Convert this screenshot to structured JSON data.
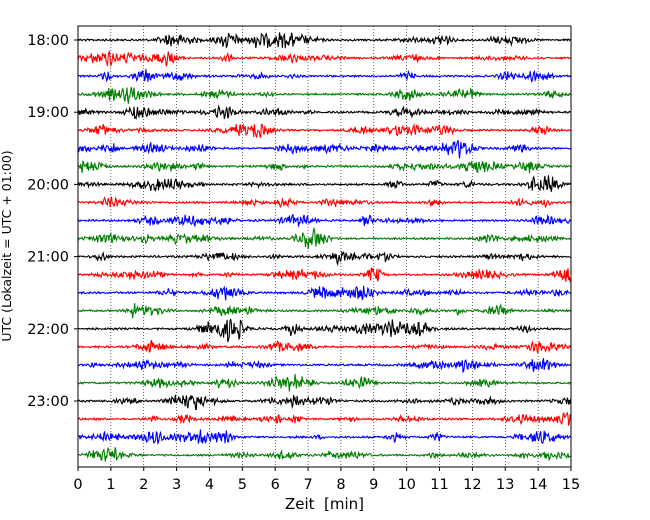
{
  "chart_data": {
    "type": "line",
    "title": "",
    "xlabel": "Zeit  [min]",
    "ylabel": "UTC (Lokalzeit = UTC + 01:00)",
    "xlim": [
      0,
      15
    ],
    "x_ticks": [
      "0",
      "1",
      "2",
      "3",
      "4",
      "5",
      "6",
      "7",
      "8",
      "9",
      "10",
      "11",
      "12",
      "13",
      "14",
      "15"
    ],
    "y_ticks": [
      "18:00",
      "19:00",
      "20:00",
      "21:00",
      "22:00",
      "23:00"
    ],
    "grid": "vertical-dotted",
    "trace_colors": [
      "#000000",
      "#ff0000",
      "#0000ff",
      "#008000"
    ],
    "traces_start": "18:00",
    "trace_interval_min": 15,
    "trace_count": 24
  }
}
